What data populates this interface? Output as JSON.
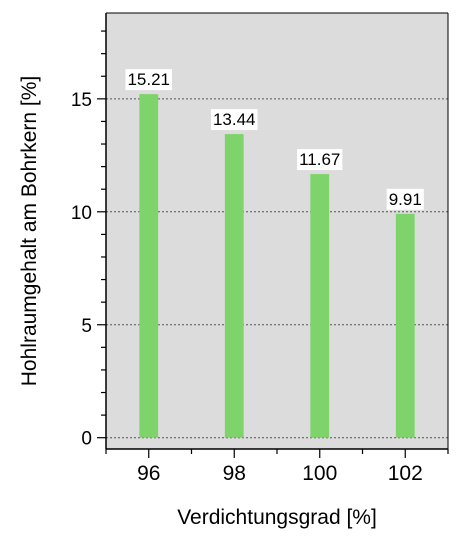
{
  "chart_data": {
    "type": "bar",
    "categories": [
      "96",
      "98",
      "100",
      "102"
    ],
    "x": [
      96,
      98,
      100,
      102
    ],
    "values": [
      15.21,
      13.44,
      11.67,
      9.91
    ],
    "value_labels": [
      "15.21",
      "13.44",
      "11.67",
      "9.91"
    ],
    "xlabel": "Verdichtungsgrad [%]",
    "ylabel": "Hohlraumgehalt am Bohrkern [%]",
    "xlim": [
      95,
      103
    ],
    "ylim": [
      -0.5,
      18.8
    ],
    "x_ticks": [
      "96",
      "98",
      "100",
      "102"
    ],
    "y_ticks": [
      "0",
      "5",
      "10",
      "15"
    ],
    "y_tick_values": [
      0,
      5,
      10,
      15
    ],
    "grid": "horizontal dotted at major y ticks",
    "legend": "none",
    "colors": {
      "bar": "#7fd36b",
      "plot_background": "#dcdcdc",
      "grid": "#555555",
      "axis": "#000000",
      "label_background": "#ffffff"
    }
  }
}
